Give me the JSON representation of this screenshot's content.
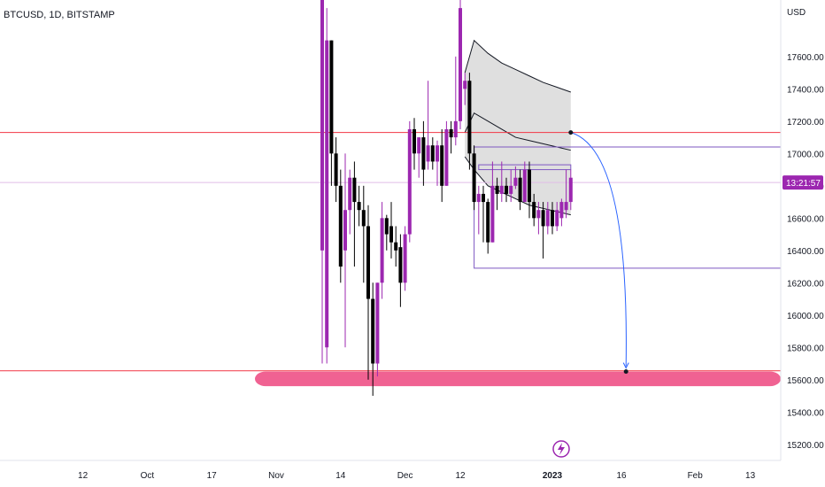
{
  "header": {
    "title": "BTCUSD, 1D, BITSTAMP"
  },
  "price_scale": {
    "currency": "USD",
    "current_price_label": "13:21:57"
  },
  "colors": {
    "up": "#9c27b0",
    "down": "#000000",
    "resistance": "#f23645",
    "target_zone": "#f06292",
    "box": "#7e57c2",
    "arrow": "#2962ff",
    "current_line": "#e1bee7",
    "band_fill": "#d9d9d9"
  },
  "chart_data": {
    "type": "candlestick",
    "symbol": "BTCUSD",
    "timeframe": "1D",
    "exchange": "BITSTAMP",
    "ylim": [
      15100,
      17950
    ],
    "yticks": [
      15200,
      15400,
      15600,
      15800,
      16000,
      16200,
      16400,
      16600,
      16800,
      17000,
      17200,
      17400,
      17600
    ],
    "xticks": [
      {
        "label": "12",
        "t": -82
      },
      {
        "label": "Oct",
        "t": -68
      },
      {
        "label": "17",
        "t": -54
      },
      {
        "label": "Nov",
        "t": -40
      },
      {
        "label": "14",
        "t": -26
      },
      {
        "label": "Dec",
        "t": -12
      },
      {
        "label": "12",
        "t": 0
      },
      {
        "label": "2023",
        "t": 20
      },
      {
        "label": "16",
        "t": 35
      },
      {
        "label": "Feb",
        "t": 51
      },
      {
        "label": "13",
        "t": 63
      }
    ],
    "horizontal_lines": [
      {
        "price": 17130,
        "role": "resistance"
      },
      {
        "price": 15655,
        "role": "support"
      }
    ],
    "current_price": 16820,
    "target_zone": {
      "low": 15560,
      "high": 15650
    },
    "range_box": {
      "t_start": 3,
      "price_top": 17040,
      "price_bottom": 16290
    },
    "inner_box": {
      "t_start": 4,
      "t_end": 24,
      "price_top": 16930,
      "price_bottom": 16900
    },
    "projection": {
      "start_t": 24,
      "start_price": 17130,
      "end_t": 36,
      "end_price": 15650
    },
    "candles": [
      {
        "t": -30,
        "o": 16400,
        "h": 18200,
        "l": 15700,
        "c": 18200
      },
      {
        "t": -29,
        "o": 15800,
        "h": 17900,
        "l": 15700,
        "c": 17700
      },
      {
        "t": -28,
        "o": 17700,
        "h": 17700,
        "l": 16800,
        "c": 17000
      },
      {
        "t": -27,
        "o": 17000,
        "h": 17100,
        "l": 16700,
        "c": 16800
      },
      {
        "t": -26,
        "o": 16800,
        "h": 16900,
        "l": 16200,
        "c": 16300
      },
      {
        "t": -25,
        "o": 16400,
        "h": 17000,
        "l": 15800,
        "c": 16650
      },
      {
        "t": -24,
        "o": 16650,
        "h": 16900,
        "l": 16500,
        "c": 16850
      },
      {
        "t": -23,
        "o": 16850,
        "h": 16950,
        "l": 16300,
        "c": 16700
      },
      {
        "t": -22,
        "o": 16700,
        "h": 16800,
        "l": 16550,
        "c": 16650
      },
      {
        "t": -21,
        "o": 16650,
        "h": 16800,
        "l": 16200,
        "c": 16550
      },
      {
        "t": -20,
        "o": 16550,
        "h": 16680,
        "l": 15600,
        "c": 16100
      },
      {
        "t": -19,
        "o": 16100,
        "h": 16200,
        "l": 15500,
        "c": 15700
      },
      {
        "t": -18,
        "o": 15700,
        "h": 16200,
        "l": 15620,
        "c": 16200
      },
      {
        "t": -17,
        "o": 16200,
        "h": 16700,
        "l": 16100,
        "c": 16600
      },
      {
        "t": -16,
        "o": 16600,
        "h": 16620,
        "l": 16400,
        "c": 16500
      },
      {
        "t": -15,
        "o": 16550,
        "h": 16700,
        "l": 16350,
        "c": 16450
      },
      {
        "t": -14,
        "o": 16450,
        "h": 16550,
        "l": 16300,
        "c": 16400
      },
      {
        "t": -13,
        "o": 16420,
        "h": 16500,
        "l": 16050,
        "c": 16200
      },
      {
        "t": -12,
        "o": 16200,
        "h": 16550,
        "l": 16150,
        "c": 16500
      },
      {
        "t": -11,
        "o": 16500,
        "h": 17200,
        "l": 16450,
        "c": 17150
      },
      {
        "t": -10,
        "o": 17150,
        "h": 17220,
        "l": 16900,
        "c": 17000
      },
      {
        "t": -9,
        "o": 17000,
        "h": 17100,
        "l": 16850,
        "c": 17100
      },
      {
        "t": -8,
        "o": 17100,
        "h": 17200,
        "l": 16800,
        "c": 16900
      },
      {
        "t": -7,
        "o": 16950,
        "h": 17450,
        "l": 16900,
        "c": 17050
      },
      {
        "t": -6,
        "o": 17050,
        "h": 17100,
        "l": 16900,
        "c": 16950
      },
      {
        "t": -5,
        "o": 16950,
        "h": 17080,
        "l": 16800,
        "c": 17050
      },
      {
        "t": -4,
        "o": 17050,
        "h": 17150,
        "l": 16700,
        "c": 16800
      },
      {
        "t": -3,
        "o": 16800,
        "h": 17200,
        "l": 16800,
        "c": 17150
      },
      {
        "t": -2,
        "o": 17150,
        "h": 17200,
        "l": 17000,
        "c": 17100
      },
      {
        "t": -1,
        "o": 17100,
        "h": 17600,
        "l": 17050,
        "c": 17200
      },
      {
        "t": 0,
        "o": 17200,
        "h": 18100,
        "l": 17150,
        "c": 17900
      },
      {
        "t": 1,
        "o": 17400,
        "h": 17500,
        "l": 17300,
        "c": 17450
      },
      {
        "t": 2,
        "o": 17450,
        "h": 17500,
        "l": 16900,
        "c": 17000
      },
      {
        "t": 3,
        "o": 17000,
        "h": 17050,
        "l": 16650,
        "c": 16700
      },
      {
        "t": 4,
        "o": 16700,
        "h": 16800,
        "l": 16500,
        "c": 16750
      },
      {
        "t": 5,
        "o": 16750,
        "h": 16800,
        "l": 16450,
        "c": 16700
      },
      {
        "t": 6,
        "o": 16700,
        "h": 16720,
        "l": 16380,
        "c": 16450
      },
      {
        "t": 7,
        "o": 16450,
        "h": 16950,
        "l": 16450,
        "c": 16800
      },
      {
        "t": 8,
        "o": 16800,
        "h": 16850,
        "l": 16650,
        "c": 16750
      },
      {
        "t": 9,
        "o": 16750,
        "h": 16950,
        "l": 16700,
        "c": 16800
      },
      {
        "t": 10,
        "o": 16800,
        "h": 16850,
        "l": 16700,
        "c": 16750
      },
      {
        "t": 11,
        "o": 16750,
        "h": 16900,
        "l": 16700,
        "c": 16800
      },
      {
        "t": 12,
        "o": 16800,
        "h": 16920,
        "l": 16780,
        "c": 16850
      },
      {
        "t": 13,
        "o": 16850,
        "h": 16900,
        "l": 16650,
        "c": 16700
      },
      {
        "t": 14,
        "o": 16700,
        "h": 16950,
        "l": 16700,
        "c": 16900
      },
      {
        "t": 15,
        "o": 16900,
        "h": 16950,
        "l": 16600,
        "c": 16700
      },
      {
        "t": 16,
        "o": 16700,
        "h": 16750,
        "l": 16550,
        "c": 16600
      },
      {
        "t": 17,
        "o": 16600,
        "h": 16700,
        "l": 16500,
        "c": 16650
      },
      {
        "t": 18,
        "o": 16650,
        "h": 16700,
        "l": 16350,
        "c": 16550
      },
      {
        "t": 19,
        "o": 16550,
        "h": 16700,
        "l": 16500,
        "c": 16650
      },
      {
        "t": 20,
        "o": 16650,
        "h": 16700,
        "l": 16500,
        "c": 16550
      },
      {
        "t": 21,
        "o": 16550,
        "h": 16700,
        "l": 16520,
        "c": 16650
      },
      {
        "t": 22,
        "o": 16600,
        "h": 16720,
        "l": 16550,
        "c": 16700
      },
      {
        "t": 23,
        "o": 16650,
        "h": 16900,
        "l": 16600,
        "c": 16700
      },
      {
        "t": 24,
        "o": 16700,
        "h": 16900,
        "l": 16650,
        "c": 16850
      }
    ],
    "bands": {
      "t": [
        1,
        3,
        6,
        9,
        12,
        15,
        18,
        21,
        24
      ],
      "upper": [
        17500,
        17700,
        17620,
        17560,
        17520,
        17480,
        17440,
        17410,
        17380
      ],
      "middle": [
        17130,
        17250,
        17200,
        17150,
        17100,
        17080,
        17060,
        17040,
        17020
      ],
      "lower": [
        16980,
        16900,
        16800,
        16760,
        16720,
        16680,
        16660,
        16640,
        16620
      ]
    }
  }
}
